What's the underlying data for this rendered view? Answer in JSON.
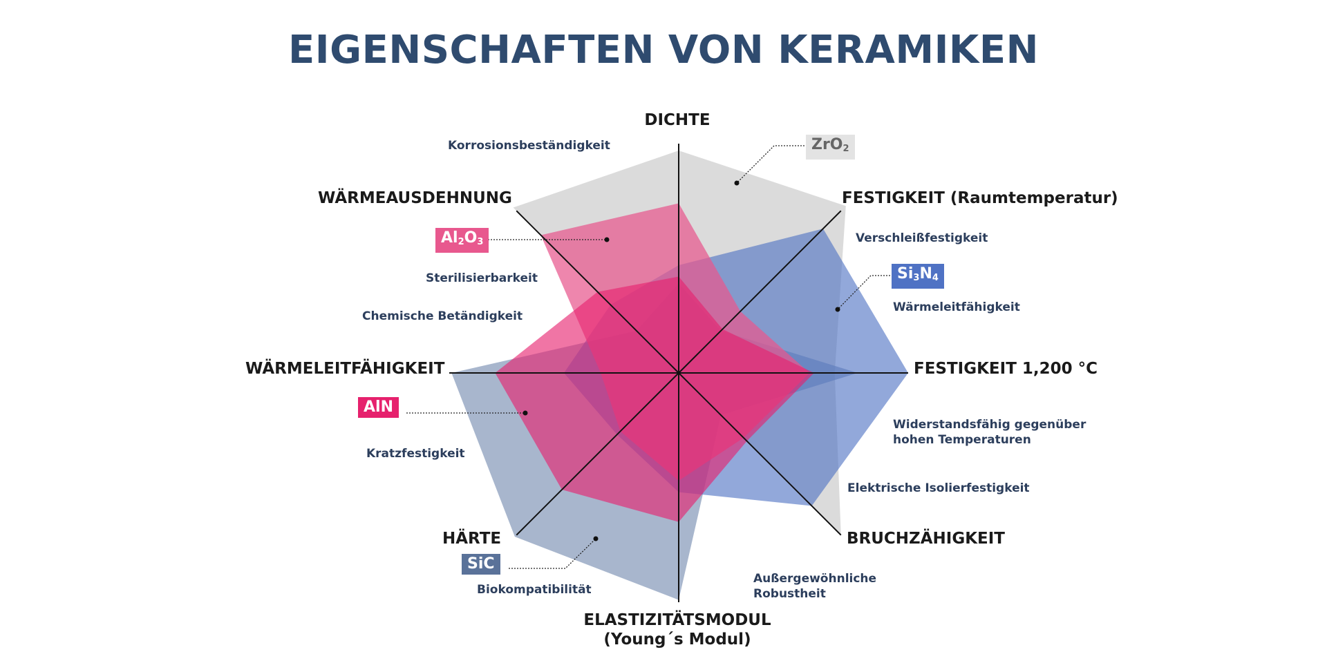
{
  "chart_data": {
    "type": "radar",
    "title": "EIGENSCHAFTEN VON KERAMIKEN",
    "axes": [
      "DICHTE",
      "FESTIGKEIT (Raumtemperatur)",
      "FESTIGKEIT 1,200 °C",
      "BRUCHZÄHIGKEIT",
      "ELASTIZITÄTSMODUL (Young´s Modul)",
      "HÄRTE",
      "WÄRMELEITFÄHIGKEIT",
      "WÄRMEAUSDEHNUNG"
    ],
    "rmax": 1.0,
    "series": [
      {
        "name": "ZrO2",
        "color": "#c8c8c8",
        "opacity": 0.65,
        "values": [
          0.97,
          1.03,
          0.68,
          1.0,
          0.0,
          0.0,
          0.0,
          1.02
        ]
      },
      {
        "name": "SiC",
        "color": "#6e86ab",
        "opacity": 0.6,
        "values": [
          0.39,
          0.26,
          0.78,
          0.26,
          0.99,
          1.01,
          0.99,
          0.26
        ]
      },
      {
        "name": "Si3N4",
        "color": "#4f72c4",
        "opacity": 0.62,
        "values": [
          0.47,
          0.89,
          1.0,
          0.82,
          0.52,
          0.38,
          0.5,
          0.42
        ]
      },
      {
        "name": "Al2O3",
        "color": "#e8588e",
        "opacity": 0.72,
        "values": [
          0.74,
          0.38,
          0.57,
          0.4,
          0.47,
          0.36,
          0.34,
          0.85
        ]
      },
      {
        "name": "AlN",
        "color": "#e6216d",
        "opacity": 0.62,
        "values": [
          0.42,
          0.27,
          0.59,
          0.42,
          0.65,
          0.72,
          0.8,
          0.5
        ]
      }
    ]
  },
  "axis_labels": {
    "dichte": "DICHTE",
    "festigkeit_rt": "FESTIGKEIT (Raumtemperatur)",
    "festigkeit_1200": "FESTIGKEIT 1,200 °C",
    "bruchzaehigkeit": "BRUCHZÄHIGKEIT",
    "elastizitaet_1": "ELASTIZITÄTSMODUL",
    "elastizitaet_2": "(Young´s Modul)",
    "haerte": "HÄRTE",
    "waermeleit": "WÄRMELEITFÄHIGKEIT",
    "waermeausdehnung": "WÄRMEAUSDEHNUNG"
  },
  "properties": {
    "korrosion": "Korrosionsbeständigkeit",
    "verschleiss": "Verschleißfestigkeit",
    "waermeleitfaehigkeit": "Wärmeleitfähigkeit",
    "widerstand_1": "Widerstandsfähig gegenüber",
    "widerstand_2": "hohen Temperaturen",
    "isolier": "Elektrische Isolierfestigkeit",
    "robust_1": "Außergewöhnliche",
    "robust_2": "Robustheit",
    "biokompat": "Biokompatibilität",
    "kratz": "Kratzfestigkeit",
    "chemisch": "Chemische Betändigkeit",
    "steril": "Sterilisierbarkeit"
  },
  "tags": {
    "zro2": {
      "main": "ZrO",
      "sub": "2",
      "bg": "#e3e3e3",
      "fg": "#666666"
    },
    "si3n4": {
      "a": "Si",
      "sub1": "3",
      "b": "N",
      "sub2": "4",
      "bg": "#4f72c4",
      "fg": "#ffffff"
    },
    "al2o3": {
      "a": "Al",
      "sub1": "2",
      "b": "O",
      "sub2": "3",
      "bg": "#e8588e",
      "fg": "#ffffff"
    },
    "aln": {
      "main": "AlN",
      "bg": "#e6216d",
      "fg": "#ffffff"
    },
    "sic": {
      "main": "SiC",
      "bg": "#5a7299",
      "fg": "#ffffff"
    }
  }
}
